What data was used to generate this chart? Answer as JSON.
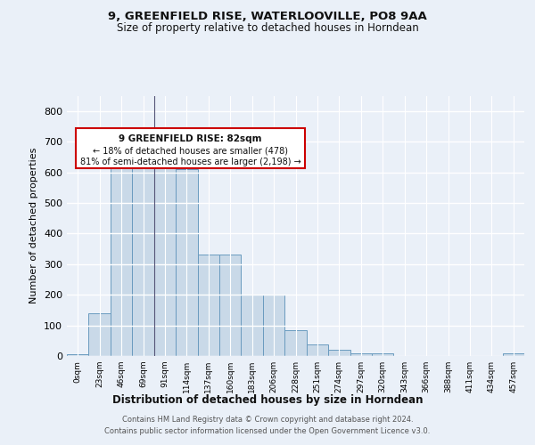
{
  "title1": "9, GREENFIELD RISE, WATERLOOVILLE, PO8 9AA",
  "title2": "Size of property relative to detached houses in Horndean",
  "xlabel": "Distribution of detached houses by size in Horndean",
  "ylabel": "Number of detached properties",
  "categories": [
    "0sqm",
    "23sqm",
    "46sqm",
    "69sqm",
    "91sqm",
    "114sqm",
    "137sqm",
    "160sqm",
    "183sqm",
    "206sqm",
    "228sqm",
    "251sqm",
    "274sqm",
    "297sqm",
    "320sqm",
    "343sqm",
    "366sqm",
    "388sqm",
    "411sqm",
    "434sqm",
    "457sqm"
  ],
  "values": [
    5,
    140,
    638,
    630,
    630,
    610,
    330,
    330,
    200,
    200,
    85,
    37,
    20,
    10,
    8,
    0,
    0,
    0,
    0,
    0,
    8
  ],
  "bar_color": "#c9d9e8",
  "bar_edge_color": "#6a9bbf",
  "annotation_box_text": [
    "9 GREENFIELD RISE: 82sqm",
    "← 18% of detached houses are smaller (478)",
    "81% of semi-detached houses are larger (2,198) →"
  ],
  "annotation_box_color": "#ffffff",
  "annotation_box_edge_color": "#cc0000",
  "vline_x_index": 3,
  "bg_color": "#eaf0f8",
  "plot_bg_color": "#eaf0f8",
  "grid_color": "#ffffff",
  "footnote1": "Contains HM Land Registry data © Crown copyright and database right 2024.",
  "footnote2": "Contains public sector information licensed under the Open Government Licence v3.0.",
  "ylim": [
    0,
    850
  ],
  "yticks": [
    0,
    100,
    200,
    300,
    400,
    500,
    600,
    700,
    800
  ]
}
